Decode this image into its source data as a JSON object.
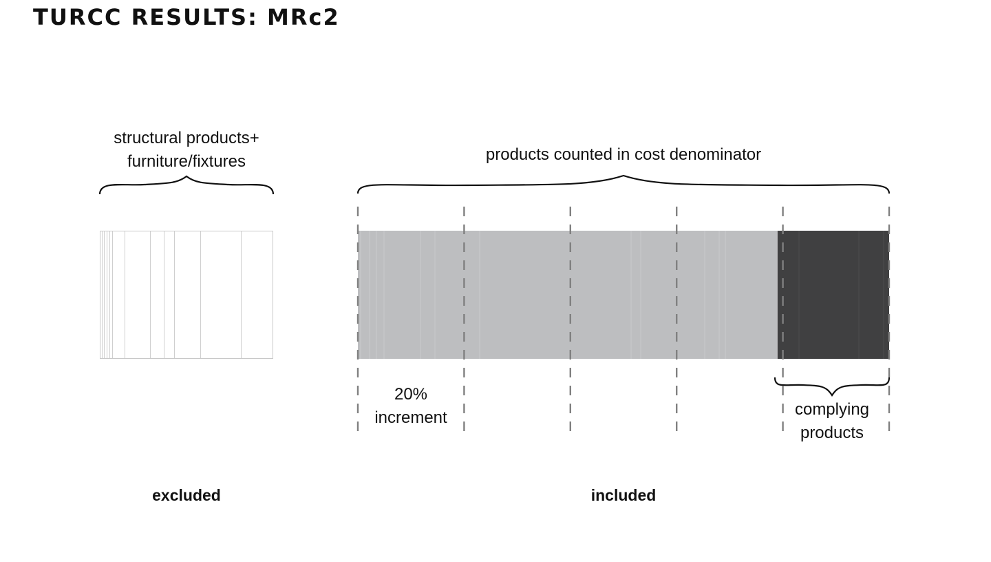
{
  "title": "TURCC RESULTS: MRc2",
  "excluded_group": {
    "label_lines": [
      "structural products+",
      "furniture/fixtures"
    ],
    "bottom_label": "excluded",
    "fill": "#ffffff",
    "stroke": "#c8c8c8"
  },
  "included_group": {
    "label": "products counted in cost denominator",
    "bottom_label": "included",
    "increment_label_lines": [
      "20%",
      "increment"
    ],
    "complying_label_lines": [
      "complying",
      "products"
    ],
    "complying_fraction": 0.21,
    "colors": {
      "non_complying": "#bdbec0",
      "complying": "#404041",
      "divider_marks": "#808080"
    }
  }
}
